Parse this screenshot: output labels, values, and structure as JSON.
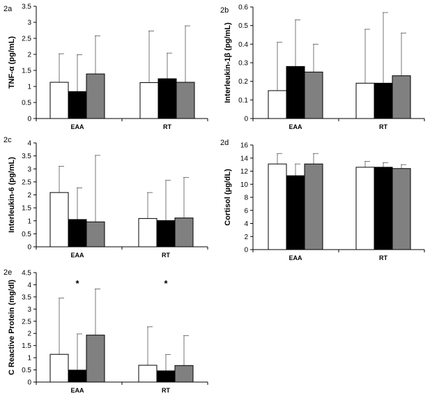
{
  "chart_data": [
    {
      "type": "bar",
      "panel": "2a",
      "ylabel": "TNF-α (pg/mL)",
      "categories": [
        "EAA",
        "RT"
      ],
      "ylim": [
        0,
        3.5
      ],
      "yticks": [
        "0",
        "0.5",
        "1",
        "1.5",
        "2",
        "2.5",
        "3",
        "3.5"
      ],
      "tick_values": [
        0,
        0.5,
        1,
        1.5,
        2,
        2.5,
        3,
        3.5
      ],
      "series": [
        {
          "name": "white",
          "color": "#ffffff",
          "values": [
            1.13,
            1.12
          ],
          "errors": [
            2.02,
            2.73
          ]
        },
        {
          "name": "black",
          "color": "#000000",
          "values": [
            0.84,
            1.24
          ],
          "errors": [
            1.99,
            2.04
          ]
        },
        {
          "name": "gray",
          "color": "#808080",
          "values": [
            1.39,
            1.13
          ],
          "errors": [
            2.58,
            2.89
          ]
        }
      ],
      "annotations": []
    },
    {
      "type": "bar",
      "panel": "2b",
      "ylabel": "Interleukin-1β (pg/mL)",
      "categories": [
        "EAA",
        "RT"
      ],
      "ylim": [
        0,
        0.6
      ],
      "yticks": [
        "0",
        "0.1",
        "0.2",
        "0.3",
        "0.4",
        "0.5",
        "0.6"
      ],
      "tick_values": [
        0,
        0.1,
        0.2,
        0.3,
        0.4,
        0.5,
        0.6
      ],
      "series": [
        {
          "name": "white",
          "color": "#ffffff",
          "values": [
            0.15,
            0.19
          ],
          "errors": [
            0.41,
            0.48
          ]
        },
        {
          "name": "black",
          "color": "#000000",
          "values": [
            0.28,
            0.19
          ],
          "errors": [
            0.53,
            0.57
          ]
        },
        {
          "name": "gray",
          "color": "#808080",
          "values": [
            0.25,
            0.23
          ],
          "errors": [
            0.4,
            0.46
          ]
        }
      ],
      "annotations": []
    },
    {
      "type": "bar",
      "panel": "2c",
      "ylabel": "Interleukin-6 (pg/mL)",
      "categories": [
        "EAA",
        "RT"
      ],
      "ylim": [
        0,
        4
      ],
      "yticks": [
        "0",
        "0.5",
        "1",
        "1.5",
        "2",
        "2.5",
        "3",
        "3.5",
        "4"
      ],
      "tick_values": [
        0,
        0.5,
        1,
        1.5,
        2,
        2.5,
        3,
        3.5,
        4
      ],
      "series": [
        {
          "name": "white",
          "color": "#ffffff",
          "values": [
            2.09,
            1.09
          ],
          "errors": [
            3.1,
            2.09
          ]
        },
        {
          "name": "black",
          "color": "#000000",
          "values": [
            1.05,
            1.01
          ],
          "errors": [
            2.27,
            2.56
          ]
        },
        {
          "name": "gray",
          "color": "#808080",
          "values": [
            0.96,
            1.11
          ],
          "errors": [
            3.52,
            2.67
          ]
        }
      ],
      "annotations": []
    },
    {
      "type": "bar",
      "panel": "2d",
      "ylabel": "Cortisol (µg/dL)",
      "categories": [
        "EAA",
        "RT"
      ],
      "ylim": [
        0,
        16
      ],
      "yticks": [
        "0",
        "2",
        "4",
        "6",
        "8",
        "10",
        "12",
        "14",
        "16"
      ],
      "tick_values": [
        0,
        2,
        4,
        6,
        8,
        10,
        12,
        14,
        16
      ],
      "series": [
        {
          "name": "white",
          "color": "#ffffff",
          "values": [
            13.1,
            12.6
          ],
          "errors": [
            14.7,
            13.5
          ]
        },
        {
          "name": "black",
          "color": "#000000",
          "values": [
            11.3,
            12.6
          ],
          "errors": [
            13.1,
            13.3
          ]
        },
        {
          "name": "gray",
          "color": "#808080",
          "values": [
            13.1,
            12.4
          ],
          "errors": [
            14.7,
            13.0
          ]
        }
      ],
      "annotations": []
    },
    {
      "type": "bar",
      "panel": "2e",
      "ylabel": "C Reactive Protein (mg/dl)",
      "categories": [
        "EAA",
        "RT"
      ],
      "ylim": [
        0,
        4.5
      ],
      "yticks": [
        "0",
        "0.5",
        "1",
        "1.5",
        "2",
        "2.5",
        "3",
        "3.5",
        "4",
        "4.5"
      ],
      "tick_values": [
        0,
        0.5,
        1,
        1.5,
        2,
        2.5,
        3,
        3.5,
        4,
        4.5
      ],
      "series": [
        {
          "name": "white",
          "color": "#ffffff",
          "values": [
            1.14,
            0.69
          ],
          "errors": [
            3.45,
            2.27
          ]
        },
        {
          "name": "black",
          "color": "#000000",
          "values": [
            0.49,
            0.46
          ],
          "errors": [
            1.98,
            1.13
          ]
        },
        {
          "name": "gray",
          "color": "#808080",
          "values": [
            1.93,
            0.68
          ],
          "errors": [
            3.83,
            1.91
          ]
        }
      ],
      "annotations": [
        {
          "text": "*",
          "category": 0,
          "series": 1,
          "value": 4.1
        },
        {
          "text": "*",
          "category": 1,
          "series": 1,
          "value": 4.1
        }
      ]
    }
  ]
}
